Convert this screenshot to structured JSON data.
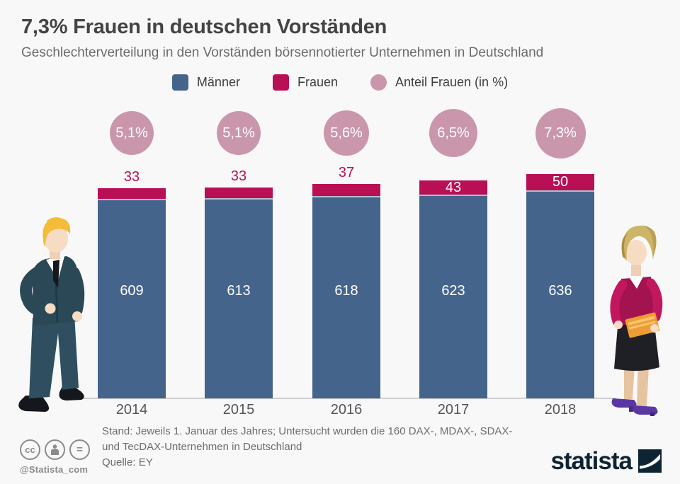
{
  "chart_data": {
    "type": "bar",
    "stacked": true,
    "title": "7,3% Frauen in deutschen Vorständen",
    "subtitle": "Geschlechterverteilung in den Vorständen börsennotierter Unternehmen in Deutschland",
    "categories": [
      "2014",
      "2015",
      "2016",
      "2017",
      "2018"
    ],
    "series": [
      {
        "name": "Männer",
        "values": [
          609,
          613,
          618,
          623,
          636
        ],
        "color": "#45648c"
      },
      {
        "name": "Frauen",
        "values": [
          33,
          33,
          37,
          43,
          50
        ],
        "color": "#b90f55"
      }
    ],
    "share_series": {
      "name": "Anteil Frauen (in %)",
      "values": [
        5.1,
        5.1,
        5.6,
        6.5,
        7.3
      ],
      "labels": [
        "5,1%",
        "5,1%",
        "5,6%",
        "6,5%",
        "7,3%"
      ],
      "color": "#ca96ab"
    },
    "legend_position": "top",
    "grid": false,
    "y_axis_shown": false,
    "ylim": [
      0,
      700
    ]
  },
  "legend": {
    "items": [
      {
        "label": "Männer",
        "color": "#45648c",
        "shape": "square"
      },
      {
        "label": "Frauen",
        "color": "#b90f55",
        "shape": "square"
      },
      {
        "label": "Anteil Frauen (in %)",
        "color": "#ca96ab",
        "shape": "circle"
      }
    ]
  },
  "illustrations": {
    "left": "businessman-in-suit",
    "right": "businesswoman-with-folder"
  },
  "footer": {
    "cc_icons": [
      "creative-commons-icon",
      "attribution-person-icon",
      "no-derivatives-equals-icon"
    ],
    "cc_text": "cc",
    "equals_text": "=",
    "handle": "@Statista_com",
    "note_line1": "Stand: Jeweils 1. Januar des Jahres; Untersucht wurden die 160 DAX-, MDAX-, SDAX-",
    "note_line2": "und TecDAX-Unternehmen in Deutschland",
    "source": "Quelle: EY",
    "brand": "statista"
  },
  "colors": {
    "background": "#f8f8f8",
    "maenner_blue": "#45648c",
    "frauen_crimson": "#b90f55",
    "anteil_pink": "#ca96ab",
    "brand_navy": "#0e2433"
  }
}
